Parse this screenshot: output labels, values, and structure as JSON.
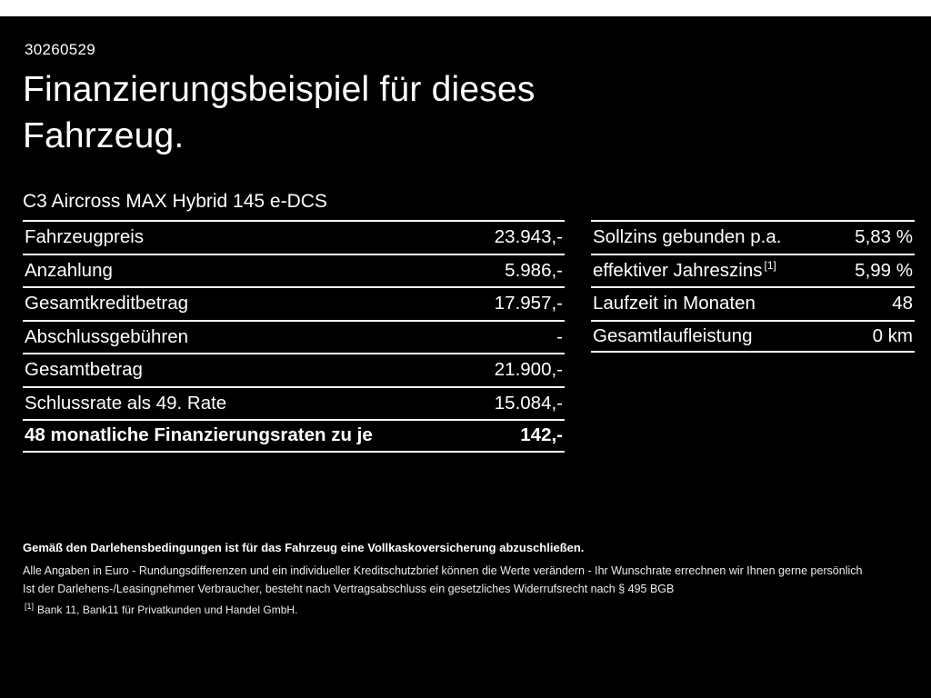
{
  "header": {
    "document_id": "30260529",
    "title_line1": "Finanzierungsbeispiel für dieses",
    "title_line2": "Fahrzeug.",
    "vehicle": "C3 Aircross MAX Hybrid 145 e-DCS"
  },
  "finance_table": {
    "rows": [
      {
        "label": "Fahrzeugpreis",
        "value": "23.943,-"
      },
      {
        "label": "Anzahlung",
        "value": "5.986,-"
      },
      {
        "label": "Gesamtkreditbetrag",
        "value": "17.957,-"
      },
      {
        "label": "Abschlussgebühren",
        "value": "-"
      },
      {
        "label": "Gesamtbetrag",
        "value": "21.900,-"
      },
      {
        "label": "Schlussrate als 49. Rate",
        "value": "15.084,-"
      },
      {
        "label": "48 monatliche Finanzierungsraten zu je",
        "value": "142,-"
      }
    ]
  },
  "conditions_table": {
    "rows": [
      {
        "label": "Sollzins gebunden p.a.",
        "sup": "",
        "value": "5,83 %"
      },
      {
        "label": "effektiver Jahreszins",
        "sup": "[1]",
        "value": "5,99 %"
      },
      {
        "label": "Laufzeit in Monaten",
        "sup": "",
        "value": "48"
      },
      {
        "label": "Gesamtlaufleistung",
        "sup": "",
        "value": "0 km"
      }
    ]
  },
  "footer": {
    "insurance_note": "Gemäß den Darlehensbedingungen ist für das Fahrzeug eine Vollkaskoversicherung abzuschließen.",
    "note2": "Alle Angaben in Euro - Rundungsdifferenzen und ein individueller Kreditschutzbrief können die Werte verändern - Ihr Wunschrate errechnen wir Ihnen gerne persönlich",
    "note3": "Ist der Darlehens-/Leasingnehmer Verbraucher, besteht nach Vertragsabschluss ein gesetzliches Widerrufsrecht nach § 495 BGB",
    "footnote_sup": "[1]",
    "footnote": "Bank 11, Bank11 für Privatkunden und Handel GmbH."
  },
  "colors": {
    "background": "#000000",
    "text": "#ffffff",
    "frame": "#ffffff"
  }
}
